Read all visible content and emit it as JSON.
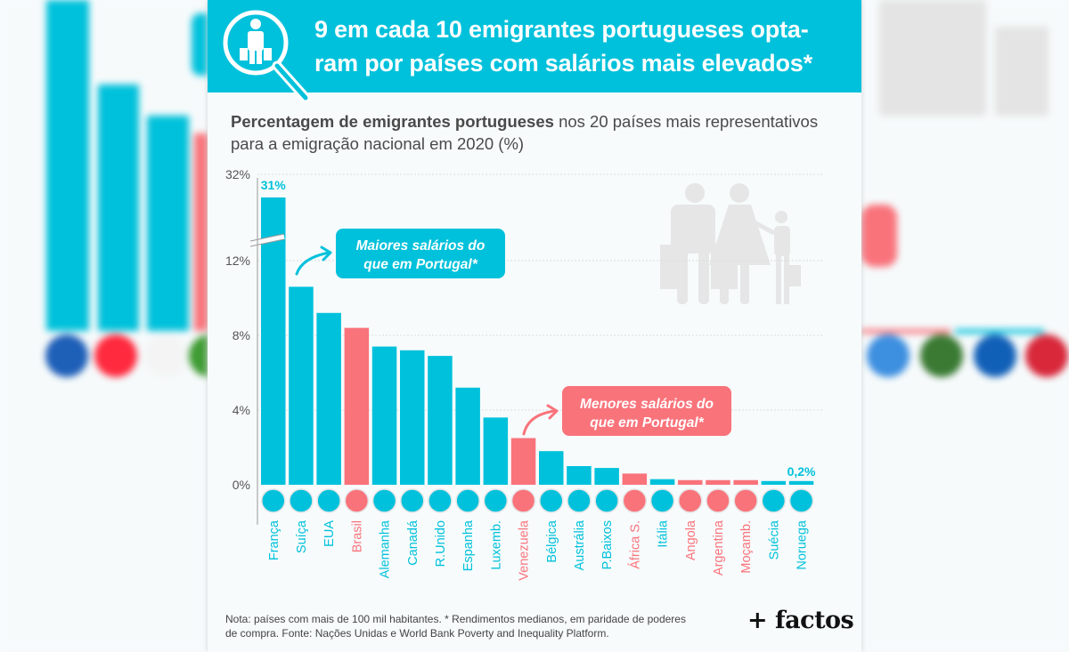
{
  "header": {
    "title_line1": "9 em cada 10 emigrantes portugueses opta-",
    "title_line2": "ram por países com salários mais elevados*",
    "icon": "magnifier-emigrant-icon"
  },
  "subtitle": {
    "bold": "Percentagem de emigrantes portugueses",
    "rest_line1": " nos 20 países mais representativos",
    "line2": "para a emigração nacional em 2020 (%)"
  },
  "annotations": {
    "higher": {
      "line1": "Maiores salários do",
      "line2": "que em Portugal*"
    },
    "lower": {
      "line1": "Menores salários do",
      "line2": "que em Portugal*"
    },
    "first_label": "31%",
    "last_label": "0,2%"
  },
  "footer": {
    "note_line1": "Nota: países com mais de 100 mil habitantes. * Rendimentos medianos, em paridade de poderes",
    "note_line2": "de compra. Fonte: Nações Unidas e World Bank Poverty and Inequality Platform.",
    "logo": "+ factos"
  },
  "colors": {
    "higher": "#00c1db",
    "lower": "#f9737b",
    "axis_text": "#555555"
  },
  "chart_data": {
    "type": "bar",
    "title": "Percentagem de emigrantes portugueses nos 20 países mais representativos para a emigração nacional em 2020 (%)",
    "xlabel": "",
    "ylabel": "",
    "ylim": [
      0,
      32
    ],
    "axis_break": [
      12,
      32
    ],
    "yticks": [
      "0%",
      "4%",
      "8%",
      "12%",
      "32%"
    ],
    "ytick_values": [
      0,
      4,
      8,
      12,
      32
    ],
    "grid": true,
    "categories": [
      "França",
      "Suíça",
      "EUA",
      "Brasil",
      "Alemanha",
      "Canadá",
      "R.Unido",
      "Espanha",
      "Luxemb.",
      "Venezuela",
      "Bélgica",
      "Austrália",
      "P.Baixos",
      "África S.",
      "Itália",
      "Angola",
      "Argentina",
      "Moçamb.",
      "Suécia",
      "Noruega"
    ],
    "values": [
      31,
      10.6,
      9.2,
      8.4,
      7.4,
      7.2,
      6.9,
      5.2,
      3.6,
      2.5,
      1.8,
      1.0,
      0.9,
      0.6,
      0.3,
      0.25,
      0.25,
      0.25,
      0.2,
      0.2
    ],
    "salary_group": [
      "higher",
      "higher",
      "higher",
      "lower",
      "higher",
      "higher",
      "higher",
      "higher",
      "higher",
      "lower",
      "higher",
      "higher",
      "higher",
      "lower",
      "higher",
      "lower",
      "lower",
      "lower",
      "higher",
      "higher"
    ],
    "flags": [
      "fr",
      "ch",
      "us",
      "br",
      "de",
      "ca",
      "gb",
      "es",
      "lu",
      "ve",
      "be",
      "au",
      "nl",
      "za",
      "it",
      "ao",
      "ar",
      "mz",
      "se",
      "no"
    ],
    "legend": [
      "Maiores salários do que em Portugal*",
      "Menores salários do que em Portugal*"
    ]
  }
}
